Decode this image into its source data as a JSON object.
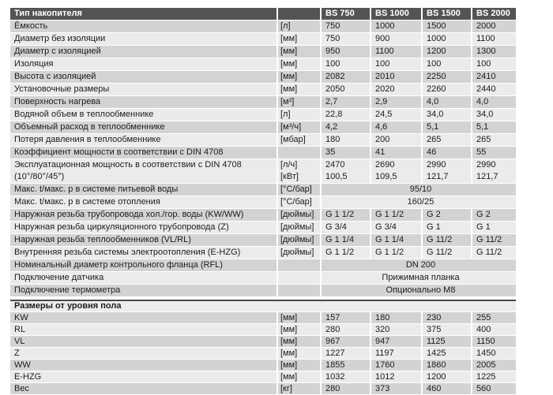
{
  "colors": {
    "header_bg": "#545456",
    "header_text": "#ffffff",
    "row_dark": "#d3d3d4",
    "row_light": "#ebebeb",
    "section_bg": "#ececec",
    "section_border": "#4a4a4c",
    "text": "#1b1b1b"
  },
  "table": {
    "header": {
      "title": "Тип накопителя",
      "unit": "",
      "columns": [
        "BS 750",
        "BS 1000",
        "BS 1500",
        "BS 2000"
      ]
    },
    "rows": [
      {
        "type": "data",
        "shade": "dark",
        "label": "Ёмкость",
        "unit": "[л]",
        "values": [
          "750",
          "1000",
          "1500",
          "2000"
        ]
      },
      {
        "type": "data",
        "shade": "light",
        "label": "Диаметр без изоляции",
        "unit": "[мм]",
        "values": [
          "750",
          "900",
          "1000",
          "1100"
        ]
      },
      {
        "type": "data",
        "shade": "dark",
        "label": "Диаметр с изоляцией",
        "unit": "[мм]",
        "values": [
          "950",
          "1100",
          "1200",
          "1300"
        ]
      },
      {
        "type": "data",
        "shade": "light",
        "label": "Изоляция",
        "unit": "[мм]",
        "values": [
          "100",
          "100",
          "100",
          "100"
        ]
      },
      {
        "type": "data",
        "shade": "dark",
        "label": "Высота с изоляцией",
        "unit": "[мм]",
        "values": [
          "2082",
          "2010",
          "2250",
          "2410"
        ]
      },
      {
        "type": "data",
        "shade": "light",
        "label": "Установочные размеры",
        "unit": "[мм]",
        "values": [
          "2050",
          "2020",
          "2260",
          "2440"
        ]
      },
      {
        "type": "data",
        "shade": "dark",
        "label": "Поверхность нагрева",
        "unit": "[м²]",
        "values": [
          "2,7",
          "2,9",
          "4,0",
          "4,0"
        ]
      },
      {
        "type": "data",
        "shade": "light",
        "label": "Водяной объем в теплообменнике",
        "unit": "[л]",
        "values": [
          "22,8",
          "24,5",
          "34,0",
          "34,0"
        ]
      },
      {
        "type": "data",
        "shade": "dark",
        "label": "Объемный расход в теплообменнике",
        "unit": "[м³/ч]",
        "values": [
          "4,2",
          "4,6",
          "5,1",
          "5,1"
        ]
      },
      {
        "type": "data",
        "shade": "light",
        "label": "Потеря давления в теплообменнике",
        "unit": "[мбар]",
        "values": [
          "180",
          "200",
          "265",
          "265"
        ]
      },
      {
        "type": "data",
        "shade": "dark",
        "label": "Коэффициент мощности в соответствии с DIN 4708",
        "unit": "",
        "values": [
          "35",
          "41",
          "46",
          "55"
        ]
      },
      {
        "type": "data2",
        "shade": "light",
        "label": "Эксплуатационная мощность в соответствии с DIN 4708",
        "label2": "(10°/80°/45°)",
        "unit": "[л/ч]",
        "unit2": "[кВт]",
        "values": [
          "2470",
          "2690",
          "2990",
          "2990"
        ],
        "values2": [
          "100,5",
          "109,5",
          "121,7",
          "121,7"
        ]
      },
      {
        "type": "span",
        "shade": "dark",
        "label": "Макс. t/макс. p в системе питьевой воды",
        "unit": "[°С/бар]",
        "span": "95/10"
      },
      {
        "type": "span",
        "shade": "light",
        "label": "Макс. t/макс. p в системе отопления",
        "unit": "[°С/бар]",
        "span": "160/25"
      },
      {
        "type": "data",
        "shade": "dark",
        "label": "Наружная резьба трубопровода хол./гор. воды (KW/WW)",
        "unit": "[дюймы]",
        "values": [
          "G 1 1/2",
          "G 1 1/2",
          "G 2",
          "G 2"
        ]
      },
      {
        "type": "data",
        "shade": "light",
        "label": "Наружная резьба циркуляционного трубопровода (Z)",
        "unit": "[дюймы]",
        "values": [
          "G 3/4",
          "G 3/4",
          "G 1",
          "G 1"
        ]
      },
      {
        "type": "data",
        "shade": "dark",
        "label": "Наружная резьба теплообменников (VL/RL)",
        "unit": "[дюймы]",
        "values": [
          "G 1 1/4",
          "G 1 1/4",
          "G 11/2",
          "G 11/2"
        ]
      },
      {
        "type": "data",
        "shade": "light",
        "label": "Внутренняя резьба системы электроотопления (E-HZG)",
        "unit": "[дюймы]",
        "values": [
          "G 1 1/2",
          "G 1 1/2",
          "G 11/2",
          "G 11/2"
        ]
      },
      {
        "type": "span",
        "shade": "dark",
        "label": "Номинальный диаметр контрольного фланца (RFL)",
        "unit": "",
        "span": "DN 200"
      },
      {
        "type": "span",
        "shade": "light",
        "label": "Подключение датчика",
        "unit": "",
        "span": "Прижимная планка"
      },
      {
        "type": "span",
        "shade": "dark",
        "label": "Подключение термометра",
        "unit": "",
        "span": "Опционально M8"
      },
      {
        "type": "gap"
      },
      {
        "type": "section",
        "label": "Размеры от уровня пола"
      },
      {
        "type": "data",
        "sec2": true,
        "shade": "dark",
        "label": "KW",
        "unit": "[мм]",
        "values": [
          "157",
          "180",
          "230",
          "255"
        ]
      },
      {
        "type": "data",
        "sec2": true,
        "shade": "light",
        "label": "RL",
        "unit": "[мм]",
        "values": [
          "280",
          "320",
          "375",
          "400"
        ]
      },
      {
        "type": "data",
        "sec2": true,
        "shade": "dark",
        "label": "VL",
        "unit": "[мм]",
        "values": [
          "967",
          "947",
          "1125",
          "1150"
        ]
      },
      {
        "type": "data",
        "sec2": true,
        "shade": "light",
        "label": "Z",
        "unit": "[мм]",
        "values": [
          "1227",
          "1197",
          "1425",
          "1450"
        ]
      },
      {
        "type": "data",
        "sec2": true,
        "shade": "dark",
        "label": "WW",
        "unit": "[мм]",
        "values": [
          "1855",
          "1760",
          "1860",
          "2005"
        ]
      },
      {
        "type": "data",
        "sec2": true,
        "shade": "light",
        "label": "E-HZG",
        "unit": "[мм]",
        "values": [
          "1032",
          "1012",
          "1200",
          "1225"
        ]
      },
      {
        "type": "data",
        "sec2": true,
        "shade": "dark",
        "label": "Вес",
        "unit": "[кг]",
        "values": [
          "280",
          "373",
          "460",
          "560"
        ]
      }
    ]
  }
}
